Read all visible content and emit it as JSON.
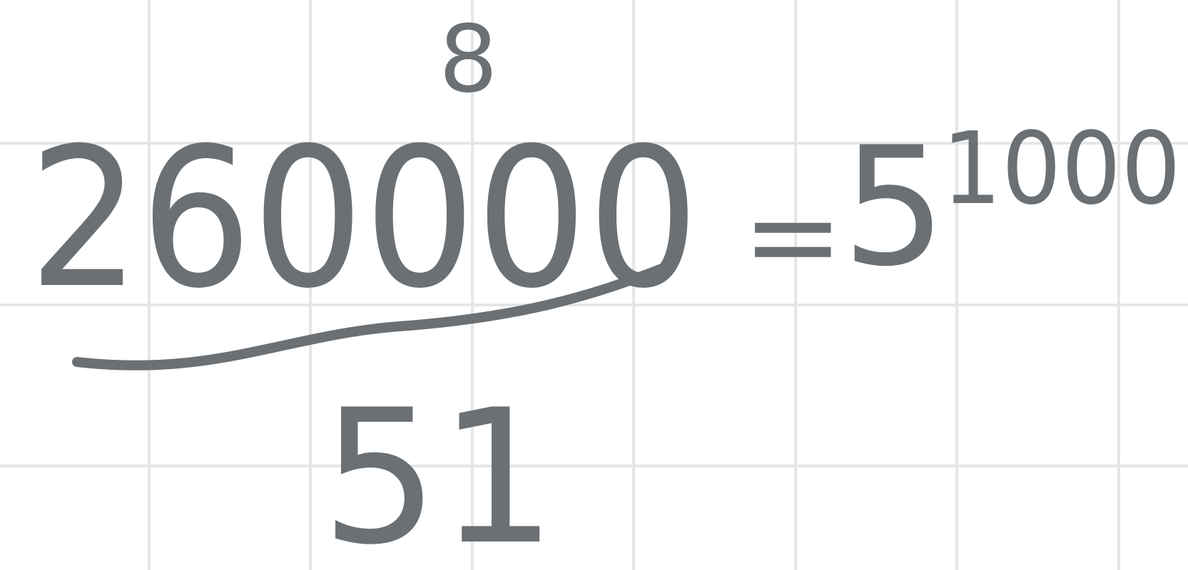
{
  "expression": {
    "numerator": "260000",
    "superscript": "8",
    "denominator": "51",
    "equals": "=",
    "result_base": "5",
    "result_exponent": "1000"
  }
}
